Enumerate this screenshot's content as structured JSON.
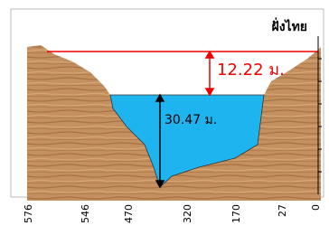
{
  "title": "ฝั่งไทย",
  "annotations": {
    "top_gap": "12.22 ม.",
    "depth": "30.47 ม."
  },
  "x_labels": [
    "576",
    "546",
    "470",
    "320",
    "170",
    "27",
    "0"
  ]
}
